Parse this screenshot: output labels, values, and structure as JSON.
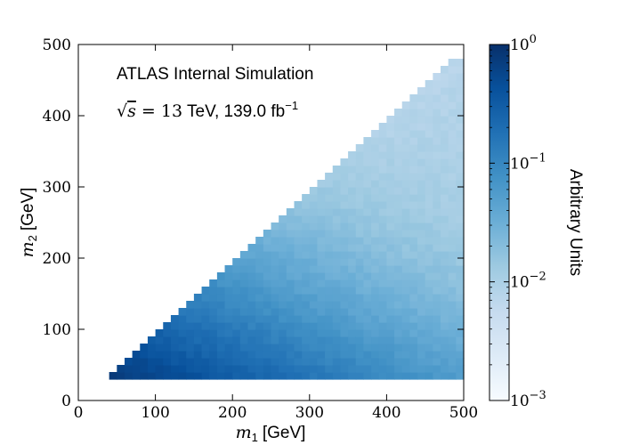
{
  "chart_data": {
    "type": "heatmap",
    "xlabel_math": "m",
    "xlabel_sub": "1",
    "xlabel_unit": "[GeV]",
    "ylabel_math": "m",
    "ylabel_sub": "2",
    "ylabel_unit": "[GeV]",
    "xlim": [
      0,
      500
    ],
    "ylim": [
      0,
      500
    ],
    "x_ticks": [
      0,
      100,
      200,
      300,
      400,
      500
    ],
    "y_ticks": [
      0,
      100,
      200,
      300,
      400,
      500
    ],
    "bin_width": 10,
    "bin_height": 10,
    "x_bin_range": [
      30,
      500
    ],
    "y_bin_range": [
      30,
      480
    ],
    "populated_region": "m2 <= m1",
    "annotations": [
      {
        "text": "ATLAS Internal Simulation"
      },
      {
        "text_sqrt": "√",
        "text_s": "s",
        "text_eq": " = 13",
        "text_rest": " TeV, 139.0 fb",
        "text_sup": "−1"
      }
    ],
    "colorbar": {
      "label": "Arbitrary Units",
      "scale": "log",
      "range": [
        0.001,
        1
      ],
      "tick_base": "10",
      "tick_exponents": [
        "0",
        "−1",
        "−2",
        "−3"
      ],
      "tick_values": [
        1,
        0.1,
        0.01,
        0.001
      ],
      "colormap": "Blues",
      "color_stops": [
        "#f7fbff",
        "#deebf7",
        "#c6dbef",
        "#9ecae1",
        "#6baed6",
        "#4292c6",
        "#2171b5",
        "#08519c",
        "#08306b"
      ]
    },
    "grid": false
  }
}
